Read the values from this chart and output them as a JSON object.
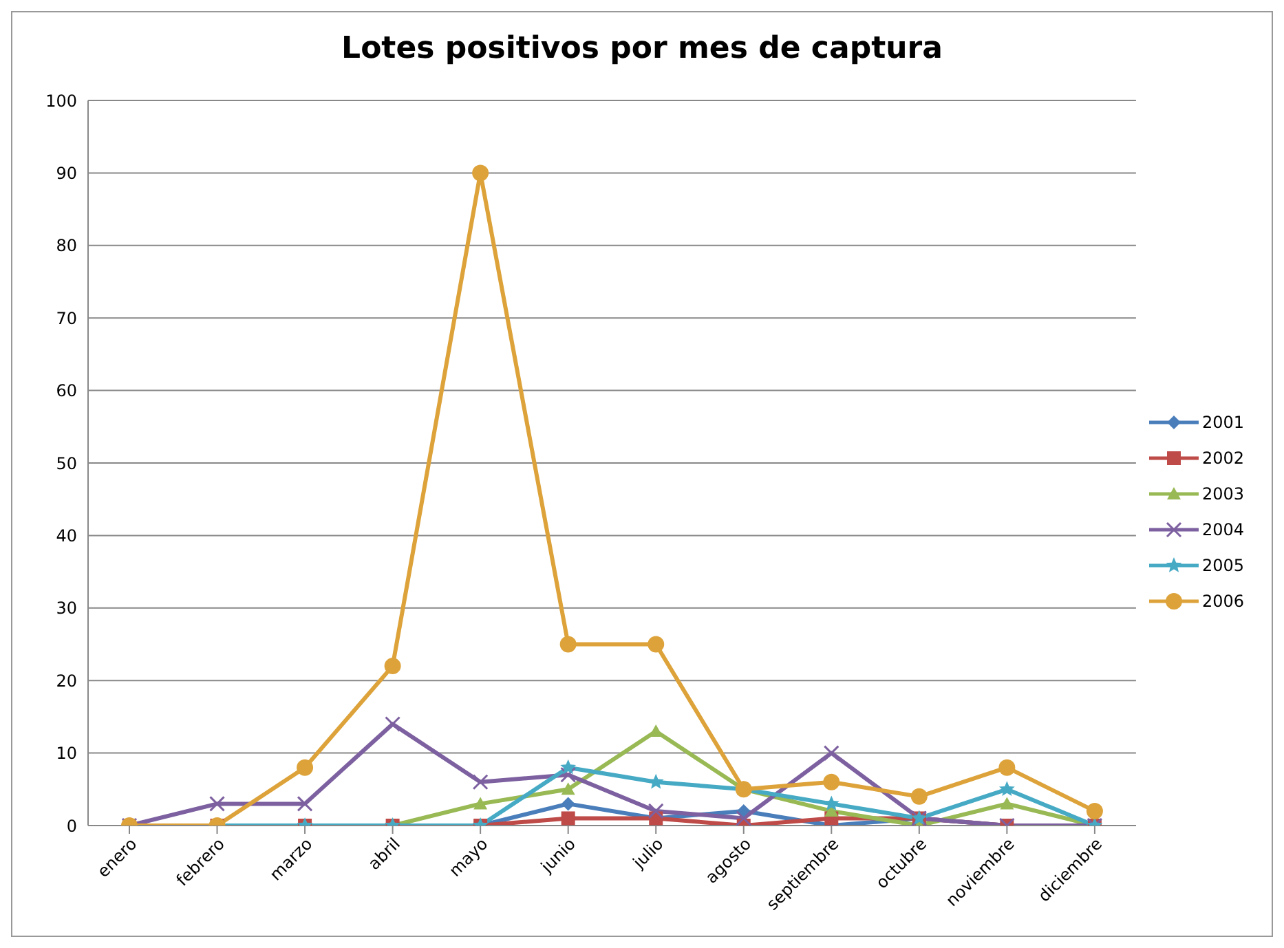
{
  "chart_data": {
    "type": "line",
    "title": "Lotes positivos por mes de captura",
    "categories": [
      "enero",
      "febrero",
      "marzo",
      "abril",
      "mayo",
      "junio",
      "julio",
      "agosto",
      "septiembre",
      "octubre",
      "noviembre",
      "diciembre"
    ],
    "series": [
      {
        "name": "2001",
        "color": "#4a7ebb",
        "marker": "diamond",
        "values": [
          0,
          0,
          0,
          0,
          0,
          3,
          1,
          2,
          0,
          1,
          0,
          0
        ]
      },
      {
        "name": "2002",
        "color": "#be4b48",
        "marker": "square",
        "values": [
          0,
          0,
          0,
          0,
          0,
          1,
          1,
          0,
          1,
          1,
          0,
          0
        ]
      },
      {
        "name": "2003",
        "color": "#98b954",
        "marker": "triangle",
        "values": [
          0,
          0,
          0,
          0,
          3,
          5,
          13,
          5,
          2,
          0,
          3,
          0
        ]
      },
      {
        "name": "2004",
        "color": "#7d60a0",
        "marker": "cross",
        "values": [
          0,
          3,
          3,
          14,
          6,
          7,
          2,
          1,
          10,
          1,
          0,
          0
        ]
      },
      {
        "name": "2005",
        "color": "#46aac5",
        "marker": "star",
        "values": [
          0,
          0,
          0,
          0,
          0,
          8,
          6,
          5,
          3,
          1,
          5,
          0
        ]
      },
      {
        "name": "2006",
        "color": "#dda33a",
        "marker": "circle",
        "values": [
          0,
          0,
          8,
          22,
          90,
          25,
          25,
          5,
          6,
          4,
          8,
          2
        ]
      }
    ],
    "ylim": [
      0,
      100
    ],
    "yticks": [
      0,
      10,
      20,
      30,
      40,
      50,
      60,
      70,
      80,
      90,
      100
    ],
    "grid": "y",
    "legend": "right"
  }
}
